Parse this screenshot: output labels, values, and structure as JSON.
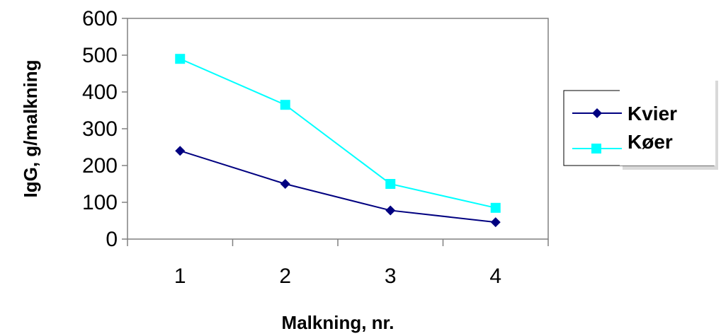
{
  "chart_data": {
    "type": "line",
    "categories": [
      "1",
      "2",
      "3",
      "4"
    ],
    "xlabel": "Malkning, nr.",
    "ylabel": "IgG, g/malkning",
    "ylim": [
      0,
      600
    ],
    "yticks": [
      "0",
      "100",
      "200",
      "300",
      "400",
      "500",
      "600"
    ],
    "grid": false,
    "legend_position": "right",
    "series": [
      {
        "name": "Kvier",
        "values": [
          240,
          150,
          78,
          46
        ],
        "color": "#000080",
        "marker": "diamond"
      },
      {
        "name": "Køer",
        "values": [
          490,
          365,
          150,
          85
        ],
        "color": "#00FFFF",
        "marker": "square"
      }
    ]
  }
}
